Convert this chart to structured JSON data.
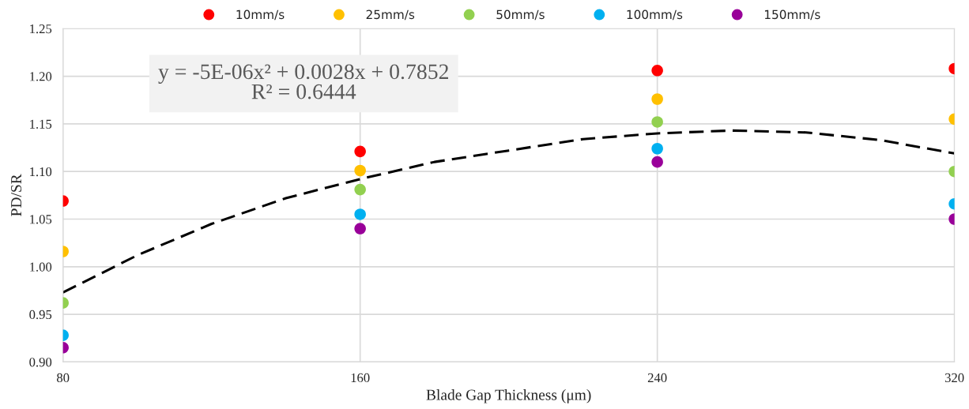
{
  "chart_data": {
    "type": "scatter",
    "xlabel": "Blade Gap Thickness (μm)",
    "ylabel": "PD/SR",
    "x": [
      80,
      160,
      240,
      320
    ],
    "xlim": [
      80,
      320
    ],
    "xticks": [
      80,
      160,
      240,
      320
    ],
    "ylim": [
      0.9,
      1.25
    ],
    "yticks": [
      {
        "value": 0.9,
        "label": "0.90"
      },
      {
        "value": 0.95,
        "label": "0.95"
      },
      {
        "value": 1.0,
        "label": "1.00"
      },
      {
        "value": 1.05,
        "label": "1.05"
      },
      {
        "value": 1.1,
        "label": "1.10"
      },
      {
        "value": 1.15,
        "label": "1.15"
      },
      {
        "value": 1.2,
        "label": "1.20"
      },
      {
        "value": 1.25,
        "label": "1.25"
      }
    ],
    "grid": true,
    "legend": "top",
    "marker": "circle",
    "series": [
      {
        "name": "10mm/s",
        "color": "#ff0000",
        "values": [
          1.069,
          1.121,
          1.206,
          1.208
        ]
      },
      {
        "name": "25mm/s",
        "color": "#ffc000",
        "values": [
          1.016,
          1.101,
          1.176,
          1.155
        ]
      },
      {
        "name": "50mm/s",
        "color": "#92d050",
        "values": [
          0.962,
          1.081,
          1.152,
          1.1
        ]
      },
      {
        "name": "100mm/s",
        "color": "#00b0f0",
        "values": [
          0.928,
          1.055,
          1.124,
          1.066
        ]
      },
      {
        "name": "150mm/s",
        "color": "#990099",
        "values": [
          0.915,
          1.04,
          1.11,
          1.05
        ]
      },
      {
        "type": "line",
        "line_style": "dashed",
        "marker": "none",
        "color": "#000000",
        "x": [
          80,
          100,
          120,
          140,
          160,
          180,
          200,
          220,
          240,
          260,
          280,
          300,
          320
        ],
        "values": [
          0.973,
          1.012,
          1.045,
          1.072,
          1.092,
          1.11,
          1.122,
          1.134,
          1.14,
          1.143,
          1.141,
          1.133,
          1.119
        ]
      }
    ],
    "annotations": [
      "y = -5E-06x² + 0.0028x + 0.7852\nR² = 0.6444"
    ]
  }
}
